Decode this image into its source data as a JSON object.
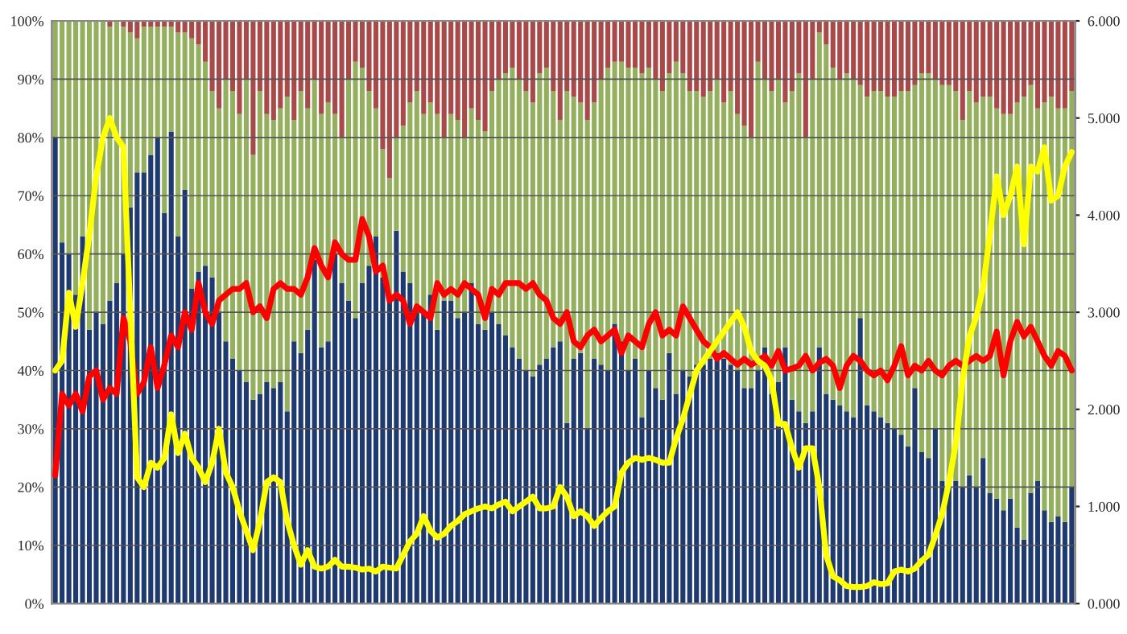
{
  "chart_data": {
    "type": "bar",
    "stacked": true,
    "grid": "y",
    "categories": [
      null,
      null,
      null,
      null,
      null,
      null,
      null,
      null,
      null,
      null,
      null,
      null,
      null,
      null,
      null,
      null,
      null,
      null,
      null,
      null,
      null,
      null,
      null,
      null,
      null,
      null,
      null,
      null,
      null,
      null,
      null,
      null,
      null,
      null,
      null,
      null,
      null,
      null,
      null,
      null,
      null,
      null,
      null,
      null,
      null,
      null,
      null,
      null,
      null,
      null,
      null,
      null,
      null,
      null,
      null,
      null,
      null,
      null,
      null,
      null,
      null,
      null,
      null,
      null,
      null,
      null,
      null,
      null,
      null,
      null,
      null,
      null,
      null,
      null,
      null,
      null,
      null,
      null,
      null,
      null,
      null,
      null,
      null,
      null,
      null,
      null,
      null,
      null,
      null,
      null,
      null,
      null,
      null,
      null,
      null,
      null,
      null,
      null,
      null,
      null,
      null,
      null,
      null,
      null,
      null,
      null,
      null,
      null,
      null,
      null,
      null,
      null,
      null,
      null,
      null,
      null,
      null,
      null,
      null,
      null,
      null,
      null,
      null,
      null,
      null,
      null,
      null,
      null,
      null,
      null,
      null,
      null,
      null,
      null,
      null,
      null,
      null,
      null,
      null,
      null,
      null,
      null,
      null,
      null,
      null,
      null,
      null,
      null,
      null,
      null
    ],
    "ylim": [
      0,
      100
    ],
    "yticks": [
      {
        "value": 0,
        "label": "0%"
      },
      {
        "value": 10,
        "label": "10%"
      },
      {
        "value": 20,
        "label": "20%"
      },
      {
        "value": 30,
        "label": "30%"
      },
      {
        "value": 40,
        "label": "40%"
      },
      {
        "value": 50,
        "label": "50%"
      },
      {
        "value": 60,
        "label": "60%"
      },
      {
        "value": 70,
        "label": "70%"
      },
      {
        "value": 80,
        "label": "80%"
      },
      {
        "value": 90,
        "label": "90%"
      },
      {
        "value": 100,
        "label": "100%"
      }
    ],
    "y2lim": [
      0,
      6
    ],
    "y2ticks": [
      {
        "value": 0,
        "label": "0.000"
      },
      {
        "value": 1,
        "label": "1.000"
      },
      {
        "value": 2,
        "label": "2.000"
      },
      {
        "value": 3,
        "label": "3.000"
      },
      {
        "value": 4,
        "label": "4.000"
      },
      {
        "value": 5,
        "label": "5.000"
      },
      {
        "value": 6,
        "label": "6.000"
      }
    ],
    "series": [
      {
        "color": "#1f3a6e",
        "values": [
          80,
          62,
          60,
          53,
          63,
          47,
          50,
          48,
          52,
          55,
          60,
          68,
          74,
          74,
          77,
          80,
          67,
          81,
          63,
          71,
          54,
          57,
          58,
          56,
          50,
          45,
          42,
          40,
          38,
          35,
          36,
          38,
          37,
          38,
          33,
          45,
          43,
          47,
          59,
          44,
          45,
          60,
          55,
          52,
          49,
          55,
          58,
          63,
          56,
          53,
          64,
          57,
          55,
          50,
          50,
          53,
          47,
          52,
          52,
          49,
          50,
          55,
          48,
          47,
          50,
          48,
          46,
          44,
          42,
          40,
          39,
          41,
          42,
          44,
          45,
          31,
          42,
          43,
          30,
          42,
          41,
          40,
          48,
          45,
          40,
          42,
          32,
          40,
          37,
          35,
          43,
          36,
          40,
          39,
          41,
          41,
          42,
          43,
          42,
          41,
          40,
          37,
          37,
          40,
          44,
          36,
          38,
          44,
          35,
          33,
          31,
          33,
          44,
          36,
          35,
          34,
          33,
          32,
          49,
          34,
          33,
          32,
          31,
          30,
          29,
          27,
          37,
          26,
          25,
          30,
          21,
          20,
          21,
          20,
          22,
          20,
          25,
          19,
          18,
          16,
          18,
          13,
          11,
          19,
          21,
          16,
          14,
          15,
          14,
          20
        ]
      },
      {
        "color": "#94b05e",
        "values": [
          20,
          38,
          40,
          47,
          37,
          53,
          50,
          52,
          47,
          45,
          39,
          30,
          23,
          25,
          22,
          19,
          32,
          18,
          35,
          27,
          43,
          39,
          35,
          32,
          35,
          45,
          46,
          44,
          52,
          42,
          52,
          46,
          46,
          47,
          54,
          38,
          45,
          38,
          31,
          40,
          41,
          24,
          25,
          38,
          44,
          37,
          30,
          22,
          22,
          20,
          16,
          25,
          31,
          38,
          34,
          33,
          37,
          28,
          32,
          34,
          30,
          30,
          35,
          34,
          38,
          42,
          45,
          48,
          48,
          48,
          47,
          50,
          50,
          44,
          38,
          57,
          45,
          43,
          53,
          44,
          49,
          52,
          45,
          48,
          52,
          50,
          59,
          52,
          53,
          53,
          48,
          57,
          51,
          49,
          47,
          46,
          46,
          47,
          44,
          47,
          44,
          45,
          43,
          53,
          46,
          52,
          52,
          42,
          53,
          58,
          49,
          57,
          54,
          60,
          57,
          56,
          58,
          58,
          40,
          53,
          55,
          56,
          56,
          57,
          59,
          61,
          52,
          65,
          66,
          60,
          68,
          69,
          67,
          63,
          66,
          66,
          62,
          68,
          67,
          68,
          66,
          73,
          76,
          70,
          64,
          70,
          73,
          70,
          71,
          68
        ]
      },
      {
        "color": "#a94a4a",
        "values": [
          0,
          0,
          0,
          0,
          0,
          0,
          0,
          0,
          1,
          0,
          1,
          2,
          3,
          1,
          1,
          1,
          1,
          1,
          2,
          2,
          3,
          4,
          7,
          12,
          15,
          10,
          12,
          16,
          10,
          23,
          12,
          16,
          17,
          15,
          13,
          17,
          12,
          15,
          10,
          16,
          14,
          16,
          20,
          10,
          7,
          8,
          12,
          15,
          22,
          27,
          20,
          18,
          14,
          12,
          16,
          14,
          16,
          20,
          16,
          17,
          20,
          15,
          17,
          19,
          12,
          10,
          9,
          8,
          10,
          12,
          14,
          9,
          8,
          12,
          17,
          12,
          13,
          14,
          17,
          14,
          10,
          8,
          7,
          7,
          8,
          8,
          9,
          8,
          10,
          12,
          9,
          7,
          9,
          12,
          12,
          13,
          12,
          10,
          14,
          12,
          16,
          18,
          20,
          7,
          10,
          12,
          10,
          14,
          12,
          9,
          20,
          10,
          2,
          4,
          8,
          10,
          9,
          10,
          11,
          13,
          12,
          12,
          13,
          13,
          12,
          12,
          11,
          9,
          9,
          10,
          11,
          11,
          12,
          17,
          12,
          14,
          13,
          13,
          15,
          16,
          16,
          14,
          13,
          11,
          15,
          14,
          13,
          15,
          15,
          12
        ]
      },
      {
        "type": "line",
        "axis": "y2",
        "color": "#ff0000",
        "values": [
          1.32,
          2.16,
          2.04,
          2.16,
          1.98,
          2.34,
          2.4,
          2.1,
          2.22,
          2.16,
          2.94,
          2.7,
          2.16,
          2.28,
          2.64,
          2.22,
          2.46,
          2.76,
          2.64,
          3.0,
          2.82,
          3.3,
          3.0,
          2.88,
          3.12,
          3.18,
          3.24,
          3.24,
          3.3,
          3.0,
          3.06,
          2.94,
          3.24,
          3.3,
          3.24,
          3.24,
          3.18,
          3.36,
          3.66,
          3.48,
          3.36,
          3.72,
          3.6,
          3.54,
          3.54,
          3.96,
          3.78,
          3.42,
          3.48,
          3.12,
          3.18,
          3.12,
          2.88,
          3.06,
          3.0,
          2.94,
          3.3,
          3.18,
          3.24,
          3.18,
          3.3,
          3.24,
          3.18,
          2.94,
          3.24,
          3.18,
          3.3,
          3.3,
          3.3,
          3.24,
          3.3,
          3.18,
          3.12,
          2.94,
          2.88,
          3.0,
          2.7,
          2.64,
          2.76,
          2.82,
          2.7,
          2.76,
          2.82,
          2.58,
          2.76,
          2.7,
          2.64,
          2.88,
          3.0,
          2.76,
          2.82,
          2.76,
          3.06,
          2.94,
          2.82,
          2.7,
          2.64,
          2.52,
          2.58,
          2.52,
          2.46,
          2.52,
          2.46,
          2.5,
          2.55,
          2.45,
          2.6,
          2.4,
          2.42,
          2.45,
          2.55,
          2.4,
          2.48,
          2.52,
          2.45,
          2.22,
          2.45,
          2.55,
          2.5,
          2.4,
          2.35,
          2.4,
          2.3,
          2.45,
          2.65,
          2.35,
          2.45,
          2.4,
          2.5,
          2.4,
          2.35,
          2.45,
          2.5,
          2.45,
          2.5,
          2.55,
          2.5,
          2.55,
          2.8,
          2.35,
          2.7,
          2.9,
          2.75,
          2.85,
          2.7,
          2.55,
          2.45,
          2.6,
          2.55,
          2.4
        ]
      },
      {
        "type": "line",
        "axis": "y2",
        "color": "#ffff00",
        "values": [
          2.4,
          2.5,
          3.2,
          2.85,
          3.3,
          3.8,
          4.4,
          4.8,
          5.0,
          4.8,
          4.7,
          3.0,
          1.3,
          1.2,
          1.45,
          1.4,
          1.5,
          1.95,
          1.55,
          1.75,
          1.5,
          1.4,
          1.25,
          1.45,
          1.8,
          1.35,
          1.2,
          0.95,
          0.75,
          0.55,
          0.85,
          1.25,
          1.3,
          1.25,
          0.85,
          0.6,
          0.4,
          0.55,
          0.38,
          0.36,
          0.38,
          0.45,
          0.38,
          0.38,
          0.37,
          0.35,
          0.36,
          0.33,
          0.38,
          0.37,
          0.36,
          0.5,
          0.64,
          0.72,
          0.9,
          0.75,
          0.68,
          0.72,
          0.8,
          0.85,
          0.92,
          0.95,
          0.98,
          1.0,
          0.98,
          1.02,
          1.05,
          0.95,
          1.0,
          1.05,
          1.1,
          0.98,
          0.98,
          1.0,
          1.2,
          1.1,
          0.9,
          0.95,
          0.9,
          0.8,
          0.88,
          0.95,
          1.0,
          1.35,
          1.45,
          1.5,
          1.48,
          1.5,
          1.48,
          1.45,
          1.45,
          1.7,
          1.9,
          2.15,
          2.4,
          2.5,
          2.6,
          2.7,
          2.8,
          2.9,
          3.0,
          2.85,
          2.6,
          2.5,
          2.45,
          2.3,
          1.85,
          1.85,
          1.6,
          1.4,
          1.6,
          1.6,
          1.2,
          0.5,
          0.28,
          0.24,
          0.18,
          0.17,
          0.17,
          0.18,
          0.22,
          0.2,
          0.21,
          0.33,
          0.35,
          0.33,
          0.36,
          0.44,
          0.5,
          0.7,
          0.92,
          1.25,
          1.65,
          2.3,
          2.75,
          2.95,
          3.25,
          3.8,
          4.4,
          4.0,
          4.2,
          4.5,
          3.7,
          4.5,
          4.45,
          4.7,
          4.15,
          4.2,
          4.5,
          4.65
        ]
      }
    ]
  }
}
